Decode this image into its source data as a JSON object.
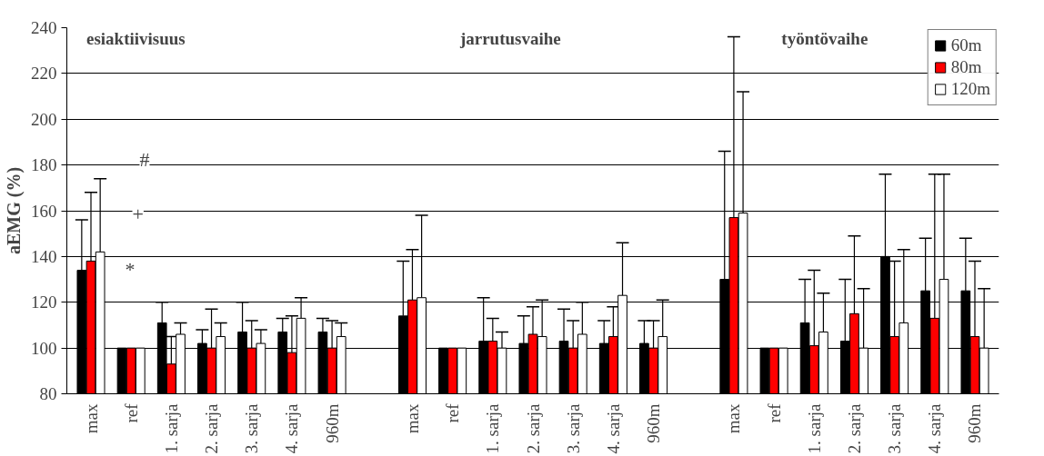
{
  "chart_data": {
    "type": "bar",
    "ylabel": "aEMG (%)",
    "categories": [
      "max",
      "ref",
      "1. sarja",
      "2. sarja",
      "3. sarja",
      "4. sarja",
      "960m",
      null,
      "max",
      "ref",
      "1. sarja",
      "2. sarja",
      "3. sarja",
      "4. sarja",
      "960m",
      null,
      "max",
      "ref",
      "1. sarja",
      "2. sarja",
      "3. sarja",
      "4. sarja",
      "960m"
    ],
    "series": [
      {
        "name": "60m",
        "color": "#000000",
        "values": [
          134,
          100,
          111,
          102,
          107,
          107,
          107,
          null,
          114,
          100,
          103,
          102,
          103,
          102,
          102,
          null,
          130,
          100,
          111,
          103,
          140,
          125,
          125
        ],
        "errors": [
          [
            134,
            156
          ],
          null,
          [
            111,
            120
          ],
          [
            102,
            108
          ],
          [
            107,
            120
          ],
          [
            107,
            113
          ],
          [
            107,
            113
          ],
          null,
          [
            114,
            138
          ],
          null,
          [
            103,
            122
          ],
          [
            102,
            114
          ],
          [
            103,
            117
          ],
          [
            102,
            112
          ],
          [
            102,
            112
          ],
          null,
          [
            130,
            186
          ],
          null,
          [
            111,
            130
          ],
          [
            103,
            130
          ],
          [
            140,
            176
          ],
          [
            125,
            148
          ],
          [
            125,
            148
          ]
        ]
      },
      {
        "name": "80m",
        "color": "#ff0000",
        "values": [
          138,
          100,
          93,
          100,
          100,
          98,
          100,
          null,
          121,
          100,
          103,
          106,
          100,
          105,
          100,
          null,
          157,
          100,
          101,
          115,
          105,
          113,
          105
        ],
        "errors": [
          [
            138,
            168
          ],
          null,
          [
            93,
            105
          ],
          [
            100,
            117
          ],
          [
            100,
            112
          ],
          [
            98,
            114
          ],
          [
            100,
            112
          ],
          null,
          [
            121,
            143
          ],
          null,
          [
            103,
            113
          ],
          [
            106,
            118
          ],
          [
            100,
            112
          ],
          [
            105,
            118
          ],
          [
            100,
            112
          ],
          null,
          [
            157,
            236
          ],
          null,
          [
            101,
            134
          ],
          [
            115,
            149
          ],
          [
            105,
            138
          ],
          [
            113,
            176
          ],
          [
            105,
            138
          ]
        ]
      },
      {
        "name": "120m",
        "color": "#ffffff",
        "values": [
          142,
          100,
          106,
          105,
          102,
          113,
          105,
          null,
          122,
          100,
          100,
          105,
          106,
          123,
          105,
          null,
          159,
          100,
          107,
          100,
          111,
          130,
          100
        ],
        "errors": [
          [
            142,
            174
          ],
          null,
          [
            106,
            111
          ],
          [
            105,
            111
          ],
          [
            102,
            108
          ],
          [
            113,
            122
          ],
          [
            105,
            111
          ],
          null,
          [
            122,
            158
          ],
          null,
          [
            100,
            107
          ],
          [
            105,
            121
          ],
          [
            106,
            120
          ],
          [
            123,
            146
          ],
          [
            105,
            121
          ],
          null,
          [
            159,
            212
          ],
          null,
          [
            107,
            124
          ],
          [
            100,
            126
          ],
          [
            111,
            143
          ],
          [
            130,
            176
          ],
          [
            100,
            126
          ]
        ]
      }
    ],
    "ylim": [
      80,
      240
    ],
    "yticks": [
      80,
      100,
      120,
      140,
      160,
      180,
      200,
      220,
      240
    ],
    "grid": "y",
    "legend": "top right",
    "annotations": [
      "esiaktiivisuus",
      "jarrutusvaihe",
      "työntövaihe",
      "*",
      "+",
      "#"
    ]
  }
}
